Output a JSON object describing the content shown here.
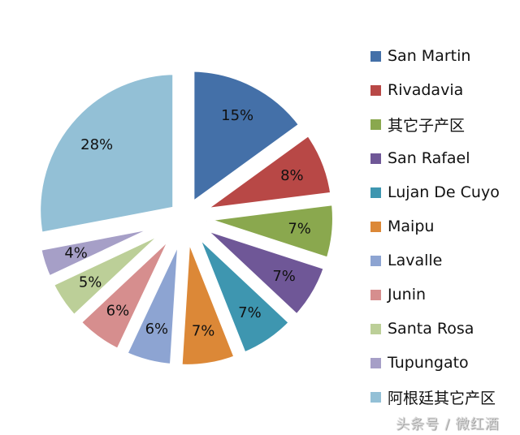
{
  "chart_data": {
    "type": "pie",
    "title": "",
    "exploded": true,
    "start_angle_deg": 0,
    "direction": "clockwise",
    "legend_position": "right",
    "categories": [
      "San Martin",
      "Rivadavia",
      "其它子产区",
      "San Rafael",
      "Lujan De Cuyo",
      "Maipu",
      "Lavalle",
      "Junin",
      "Santa Rosa",
      "Tupungato",
      "阿根廷其它产区"
    ],
    "values": [
      15,
      8,
      7,
      7,
      7,
      7,
      6,
      6,
      5,
      4,
      28
    ],
    "labels": [
      "15%",
      "8%",
      "7%",
      "7%",
      "7%",
      "7%",
      "6%",
      "6%",
      "5%",
      "4%",
      "28%"
    ],
    "colors": [
      "#4470a8",
      "#b84846",
      "#8aa84e",
      "#6f5797",
      "#3e96b0",
      "#dc8837",
      "#8da4d2",
      "#d68e8e",
      "#bccf98",
      "#a69fc7",
      "#93c0d6"
    ]
  },
  "legend": {
    "items": [
      {
        "label": "San Martin",
        "color": "#4470a8"
      },
      {
        "label": "Rivadavia",
        "color": "#b84846"
      },
      {
        "label": "其它子产区",
        "color": "#8aa84e"
      },
      {
        "label": "San Rafael",
        "color": "#6f5797"
      },
      {
        "label": "Lujan De Cuyo",
        "color": "#3e96b0"
      },
      {
        "label": "Maipu",
        "color": "#dc8837"
      },
      {
        "label": "Lavalle",
        "color": "#8da4d2"
      },
      {
        "label": "Junin",
        "color": "#d68e8e"
      },
      {
        "label": "Santa Rosa",
        "color": "#bccf98"
      },
      {
        "label": "Tupungato",
        "color": "#a69fc7"
      },
      {
        "label": "阿根廷其它产区",
        "color": "#93c0d6"
      }
    ]
  },
  "watermark": "头条号 / 微红酒"
}
